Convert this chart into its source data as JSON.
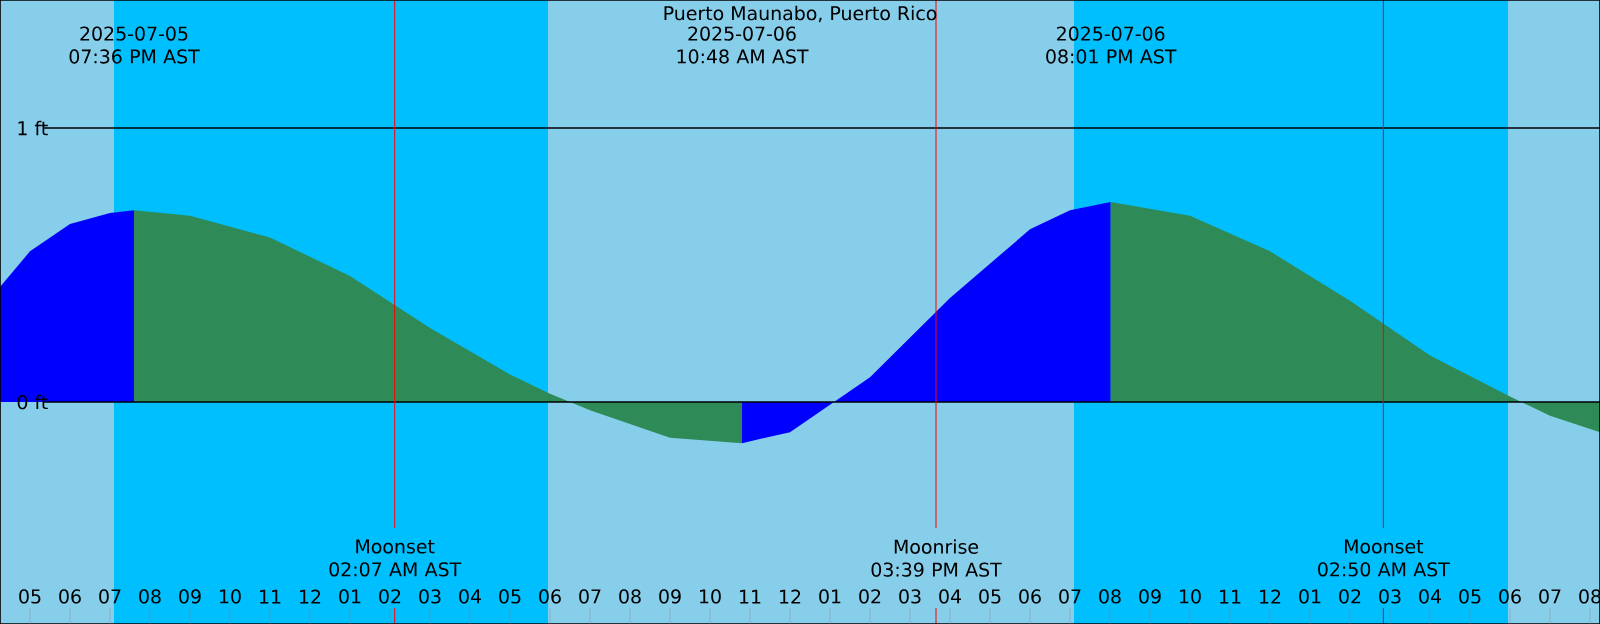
{
  "chart_data": {
    "type": "area",
    "title": "Puerto Maunabo, Puerto Rico",
    "xlim": [
      "2025-07-05T16:15",
      "2025-07-07T08:15"
    ],
    "ylim": [
      -0.81,
      1.467
    ],
    "xticks": [
      {
        "value": "2025-07-05T17:00",
        "label": "05"
      },
      {
        "value": "2025-07-05T18:00",
        "label": "06"
      },
      {
        "value": "2025-07-05T19:00",
        "label": "07"
      },
      {
        "value": "2025-07-05T20:00",
        "label": "08"
      },
      {
        "value": "2025-07-05T21:00",
        "label": "09"
      },
      {
        "value": "2025-07-05T22:00",
        "label": "10"
      },
      {
        "value": "2025-07-05T23:00",
        "label": "11"
      },
      {
        "value": "2025-07-06T00:00",
        "label": "12"
      },
      {
        "value": "2025-07-06T01:00",
        "label": "01"
      },
      {
        "value": "2025-07-06T02:00",
        "label": "02"
      },
      {
        "value": "2025-07-06T03:00",
        "label": "03"
      },
      {
        "value": "2025-07-06T04:00",
        "label": "04"
      },
      {
        "value": "2025-07-06T05:00",
        "label": "05"
      },
      {
        "value": "2025-07-06T06:00",
        "label": "06"
      },
      {
        "value": "2025-07-06T07:00",
        "label": "07"
      },
      {
        "value": "2025-07-06T08:00",
        "label": "08"
      },
      {
        "value": "2025-07-06T09:00",
        "label": "09"
      },
      {
        "value": "2025-07-06T10:00",
        "label": "10"
      },
      {
        "value": "2025-07-06T11:00",
        "label": "11"
      },
      {
        "value": "2025-07-06T12:00",
        "label": "12"
      },
      {
        "value": "2025-07-06T13:00",
        "label": "01"
      },
      {
        "value": "2025-07-06T14:00",
        "label": "02"
      },
      {
        "value": "2025-07-06T15:00",
        "label": "03"
      },
      {
        "value": "2025-07-06T16:00",
        "label": "04"
      },
      {
        "value": "2025-07-06T17:00",
        "label": "05"
      },
      {
        "value": "2025-07-06T18:00",
        "label": "06"
      },
      {
        "value": "2025-07-06T19:00",
        "label": "07"
      },
      {
        "value": "2025-07-06T20:00",
        "label": "08"
      },
      {
        "value": "2025-07-06T21:00",
        "label": "09"
      },
      {
        "value": "2025-07-06T22:00",
        "label": "10"
      },
      {
        "value": "2025-07-06T23:00",
        "label": "11"
      },
      {
        "value": "2025-07-07T00:00",
        "label": "12"
      },
      {
        "value": "2025-07-07T01:00",
        "label": "01"
      },
      {
        "value": "2025-07-07T02:00",
        "label": "02"
      },
      {
        "value": "2025-07-07T03:00",
        "label": "03"
      },
      {
        "value": "2025-07-07T04:00",
        "label": "04"
      },
      {
        "value": "2025-07-07T05:00",
        "label": "05"
      },
      {
        "value": "2025-07-07T06:00",
        "label": "06"
      },
      {
        "value": "2025-07-07T07:00",
        "label": "07"
      },
      {
        "value": "2025-07-07T08:00",
        "label": "08"
      }
    ],
    "yticks": [
      {
        "value": 0,
        "label": "0 ft"
      },
      {
        "value": 1,
        "label": "1 ft"
      }
    ],
    "grid": "y",
    "series": [
      {
        "color": "#0000ff",
        "x": [
          "2025-07-05T16:15",
          "2025-07-05T17:00",
          "2025-07-05T18:00",
          "2025-07-05T19:00",
          "2025-07-05T19:36"
        ],
        "values": [
          0.42,
          0.55,
          0.65,
          0.69,
          0.7
        ]
      },
      {
        "color": "#2e8b57",
        "x": [
          "2025-07-05T19:36",
          "2025-07-05T21:00",
          "2025-07-05T23:00",
          "2025-07-06T01:00",
          "2025-07-06T03:00",
          "2025-07-06T05:00",
          "2025-07-06T06:00",
          "2025-07-06T07:00",
          "2025-07-06T09:00",
          "2025-07-06T10:48"
        ],
        "values": [
          0.7,
          0.68,
          0.6,
          0.46,
          0.27,
          0.1,
          0.03,
          -0.03,
          -0.13,
          -0.15
        ]
      },
      {
        "color": "#0000ff",
        "x": [
          "2025-07-06T10:48",
          "2025-07-06T12:00",
          "2025-07-06T14:00",
          "2025-07-06T16:00",
          "2025-07-06T18:00",
          "2025-07-06T19:00",
          "2025-07-06T20:01"
        ],
        "values": [
          -0.15,
          -0.11,
          0.09,
          0.38,
          0.63,
          0.7,
          0.73
        ]
      },
      {
        "color": "#2e8b57",
        "x": [
          "2025-07-06T20:01",
          "2025-07-06T22:00",
          "2025-07-07T00:00",
          "2025-07-07T02:00",
          "2025-07-07T04:00",
          "2025-07-07T06:00",
          "2025-07-07T07:00",
          "2025-07-07T08:15"
        ],
        "values": [
          0.73,
          0.68,
          0.55,
          0.37,
          0.17,
          0.02,
          -0.05,
          -0.11
        ]
      }
    ],
    "bands": [
      {
        "axis": "x",
        "from": "2025-07-05T19:06",
        "to": "2025-07-06T05:57",
        "color": "#00bfff"
      },
      {
        "axis": "x",
        "from": "2025-07-06T19:06",
        "to": "2025-07-07T05:57",
        "color": "#00bfff"
      }
    ],
    "ref_lines": [
      {
        "axis": "x",
        "value": "2025-07-06T02:07",
        "label": "Moonset 02:07 AM AST",
        "color": "#ff0000"
      },
      {
        "axis": "x",
        "value": "2025-07-06T15:39",
        "label": "Moonrise 03:39 PM AST",
        "color": "#ff0000"
      },
      {
        "axis": "x",
        "value": "2025-07-07T02:50",
        "label": "Moonset 02:50 AM AST",
        "color": "#ff0000"
      }
    ],
    "annotations": [
      "2025-07-05 07:36 PM AST",
      "2025-07-06 10:48 AM AST",
      "2025-07-06 08:01 PM AST"
    ]
  }
}
